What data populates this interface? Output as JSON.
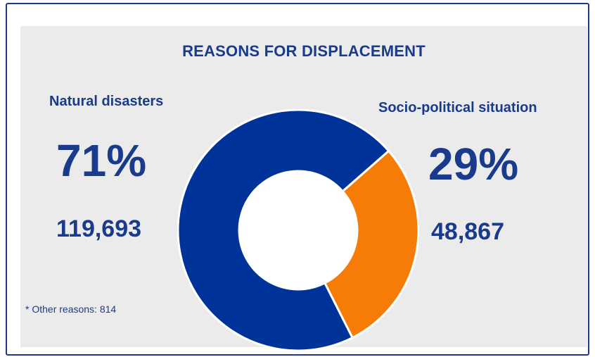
{
  "chart_data": {
    "type": "pie",
    "title": "REASONS FOR DISPLACEMENT",
    "categories": [
      "Natural disasters",
      "Socio-political situation"
    ],
    "values": [
      119693,
      48867
    ],
    "percent_labels": [
      "71%",
      "29%"
    ],
    "count_labels": [
      "119,693",
      "48,867"
    ],
    "colors": [
      "#003399",
      "#f77b07"
    ],
    "note": "* Other reasons: 814"
  }
}
